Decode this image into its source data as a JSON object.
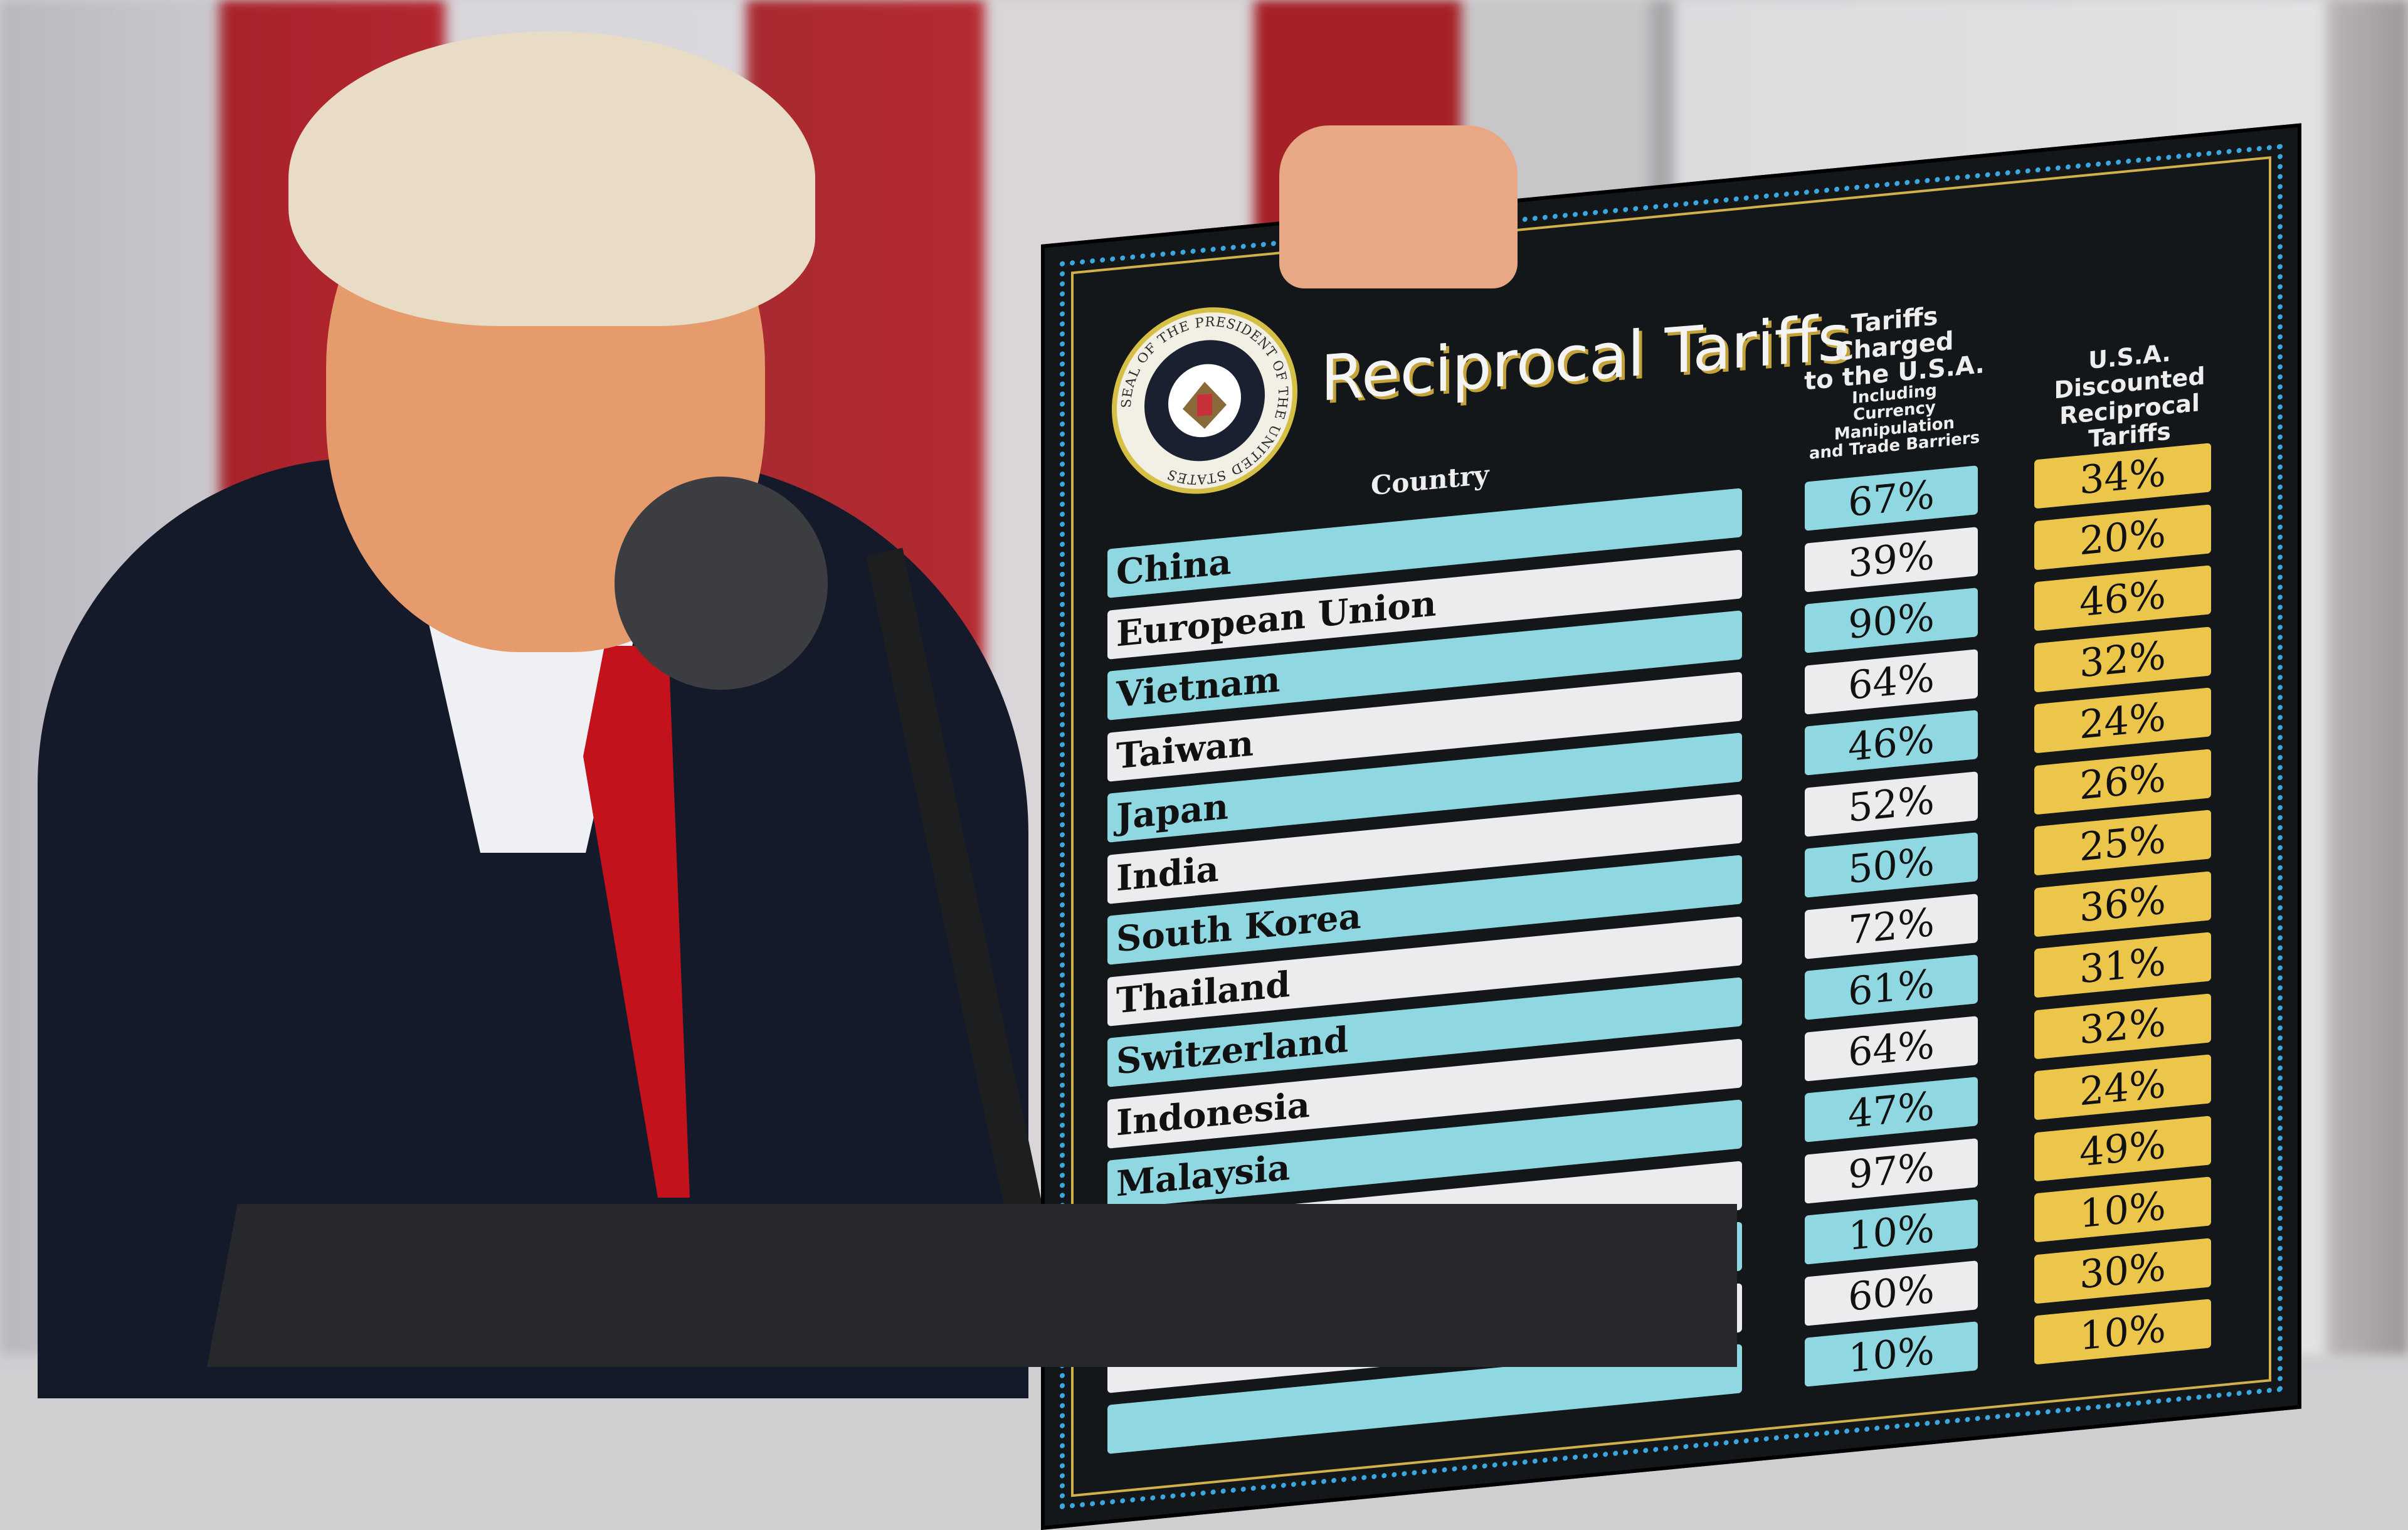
{
  "board": {
    "title": "Reciprocal Tariffs",
    "seal_text": "SEAL OF THE PRESIDENT OF THE UNITED STATES",
    "column_country": "Country",
    "column_charged": {
      "line1": "Tariffs Charged",
      "line2": "to the U.S.A.",
      "line3": "Including",
      "line4": "Currency Manipulation",
      "line5": "and Trade Barriers"
    },
    "column_discounted": {
      "line1": "U.S.A. Discounted",
      "line2": "Reciprocal Tariffs"
    },
    "colors": {
      "teal": "#8fd8e2",
      "white": "#ececee",
      "gold": "#ecc54b",
      "board": "#141719"
    },
    "rows": [
      {
        "country": "China",
        "charged": "67%",
        "discounted": "34%"
      },
      {
        "country": "European Union",
        "charged": "39%",
        "discounted": "20%"
      },
      {
        "country": "Vietnam",
        "charged": "90%",
        "discounted": "46%"
      },
      {
        "country": "Taiwan",
        "charged": "64%",
        "discounted": "32%"
      },
      {
        "country": "Japan",
        "charged": "46%",
        "discounted": "24%"
      },
      {
        "country": "India",
        "charged": "52%",
        "discounted": "26%"
      },
      {
        "country": "South Korea",
        "charged": "50%",
        "discounted": "25%"
      },
      {
        "country": "Thailand",
        "charged": "72%",
        "discounted": "36%"
      },
      {
        "country": "Switzerland",
        "charged": "61%",
        "discounted": "31%"
      },
      {
        "country": "Indonesia",
        "charged": "64%",
        "discounted": "32%"
      },
      {
        "country": "Malaysia",
        "charged": "47%",
        "discounted": "24%"
      },
      {
        "country": "",
        "charged": "97%",
        "discounted": "49%"
      },
      {
        "country": "",
        "charged": "10%",
        "discounted": "10%"
      },
      {
        "country": "",
        "charged": "60%",
        "discounted": "30%"
      },
      {
        "country": "",
        "charged": "10%",
        "discounted": "10%"
      }
    ]
  }
}
